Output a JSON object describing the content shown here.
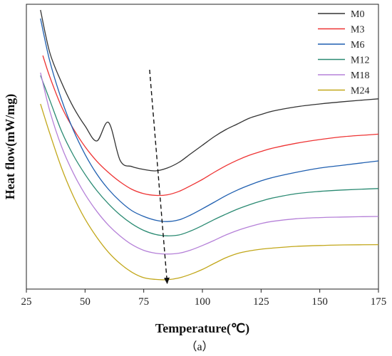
{
  "chart_data": {
    "type": "line",
    "xlabel": "Temperature(℃)",
    "ylabel": "Heat flow(mW/mg)",
    "caption": "（a）",
    "xlim": [
      25,
      175
    ],
    "x_ticks": [
      25,
      50,
      75,
      100,
      125,
      150,
      175
    ],
    "ylim": [
      0,
      100
    ],
    "y_ticks_shown": false,
    "grid": false,
    "legend_position": "top-right",
    "series": [
      {
        "name": "M0",
        "color": "#333333",
        "x": [
          31,
          35,
          40,
          45,
          50,
          55,
          60,
          65,
          70,
          75,
          80,
          85,
          90,
          95,
          100,
          105,
          110,
          115,
          120,
          125,
          130,
          140,
          150,
          160,
          175
        ],
        "y": [
          98,
          83,
          72.5,
          63.9,
          57.3,
          52,
          58.5,
          45.1,
          43,
          42,
          41.5,
          42.5,
          44.5,
          47.5,
          50.5,
          53.5,
          56,
          58,
          60,
          61.3,
          62.5,
          64,
          65,
          65.8,
          66.8
        ]
      },
      {
        "name": "M3",
        "color": "#ee3333",
        "x": [
          32,
          35,
          40,
          45,
          50,
          55,
          60,
          65,
          70,
          75,
          80,
          85,
          90,
          95,
          100,
          105,
          110,
          115,
          120,
          125,
          130,
          140,
          150,
          160,
          175
        ],
        "y": [
          82,
          74.5,
          64,
          56.3,
          50,
          44.9,
          40.9,
          37.6,
          35,
          33.5,
          32.9,
          33.1,
          34.3,
          36.3,
          38.5,
          41,
          43.3,
          45.3,
          47,
          48.3,
          49.5,
          51.2,
          52.5,
          53.5,
          54.4
        ]
      },
      {
        "name": "M6",
        "color": "#1f5fb0",
        "x": [
          31,
          35,
          40,
          45,
          50,
          55,
          60,
          65,
          70,
          75,
          80,
          85,
          90,
          95,
          100,
          105,
          110,
          115,
          120,
          125,
          130,
          140,
          150,
          160,
          175
        ],
        "y": [
          95,
          80,
          66.5,
          55.8,
          47.3,
          40.4,
          35,
          30.8,
          27.5,
          25.5,
          24.2,
          23.7,
          24.3,
          26,
          28.2,
          30.5,
          32.8,
          34.8,
          36.5,
          38,
          39.2,
          41,
          42.5,
          43.5,
          45
        ]
      },
      {
        "name": "M12",
        "color": "#2a8a72",
        "x": [
          31,
          35,
          40,
          45,
          50,
          55,
          60,
          65,
          70,
          75,
          80,
          85,
          90,
          95,
          100,
          105,
          110,
          115,
          120,
          125,
          130,
          140,
          150,
          160,
          175
        ],
        "y": [
          75,
          66.3,
          55.4,
          47,
          40.3,
          34.6,
          29.9,
          26,
          22.9,
          20.6,
          19.2,
          18.7,
          19,
          20.4,
          22.3,
          24.4,
          26.3,
          28.1,
          29.6,
          30.9,
          32,
          33.5,
          34.3,
          34.8,
          35.3
        ]
      },
      {
        "name": "M18",
        "color": "#b580d8",
        "x": [
          31,
          35,
          40,
          45,
          50,
          55,
          60,
          65,
          70,
          75,
          80,
          85,
          90,
          95,
          100,
          105,
          110,
          115,
          120,
          125,
          130,
          140,
          150,
          160,
          175
        ],
        "y": [
          76,
          62.5,
          50,
          40.7,
          33.3,
          27.3,
          22.4,
          18.6,
          15.6,
          13.6,
          12.6,
          12.3,
          12.6,
          13.7,
          15.3,
          17.1,
          19,
          20.6,
          21.9,
          23,
          23.8,
          24.7,
          25.1,
          25.3,
          25.5
        ]
      },
      {
        "name": "M24",
        "color": "#c2a71a",
        "x": [
          31,
          35,
          40,
          45,
          50,
          55,
          60,
          65,
          70,
          75,
          80,
          85,
          90,
          95,
          100,
          105,
          110,
          115,
          120,
          125,
          130,
          140,
          150,
          160,
          175
        ],
        "y": [
          65,
          54.6,
          42.5,
          32.6,
          24.6,
          18.2,
          12.9,
          8.9,
          5.9,
          4,
          3.4,
          3.3,
          3.9,
          5.2,
          6.9,
          9,
          11,
          12.5,
          13.4,
          14,
          14.4,
          15,
          15.3,
          15.5,
          15.6
        ]
      }
    ],
    "annotations": [
      {
        "type": "arrow",
        "style": "dashed",
        "color": "#111111",
        "from": [
          77.5,
          77
        ],
        "to": [
          85,
          2
        ]
      }
    ]
  }
}
